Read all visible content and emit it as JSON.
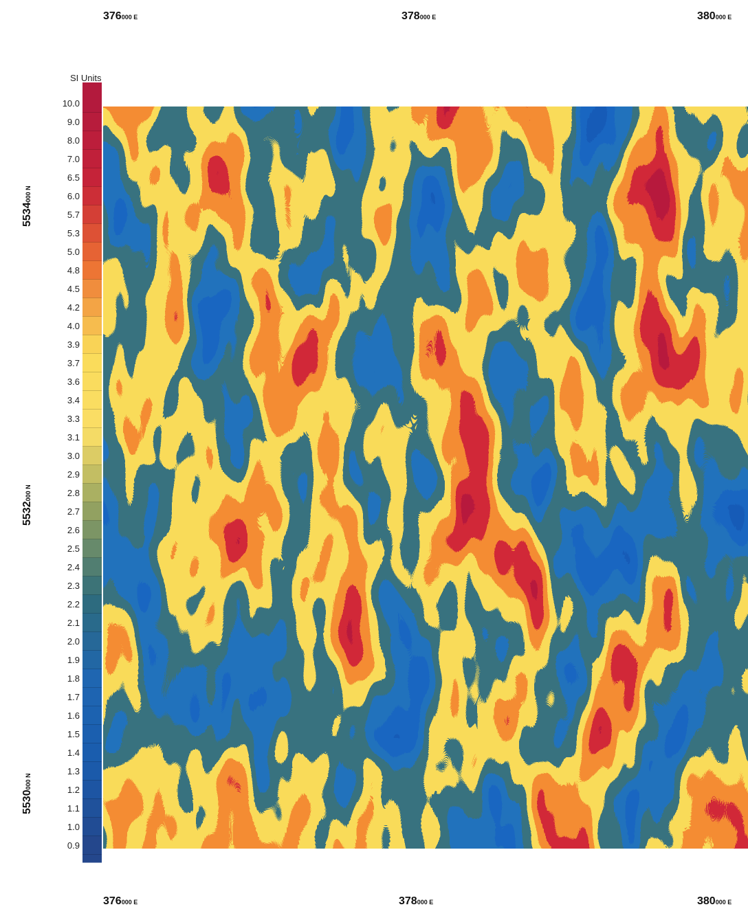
{
  "top_labels": [
    {
      "major": "376",
      "minor": "000 E"
    },
    {
      "major": "378",
      "minor": "000 E"
    },
    {
      "major": "380",
      "minor": "000 E"
    }
  ],
  "bottom_labels": [
    {
      "major": "376",
      "minor": "000 E"
    },
    {
      "major": "378",
      "minor": "000 E"
    },
    {
      "major": "380",
      "minor": "000 E"
    }
  ],
  "left_labels": [
    {
      "major": "5534",
      "minor": "000 N"
    },
    {
      "major": "5532",
      "minor": "000 N"
    },
    {
      "major": "5530",
      "minor": "000 N"
    }
  ],
  "legend": {
    "title": "SI Units",
    "labels": [
      "10.0",
      "9.0",
      "8.0",
      "7.0",
      "6.5",
      "6.0",
      "5.7",
      "5.3",
      "5.0",
      "4.8",
      "4.5",
      "4.2",
      "4.0",
      "3.9",
      "3.7",
      "3.6",
      "3.4",
      "3.3",
      "3.1",
      "3.0",
      "2.9",
      "2.8",
      "2.7",
      "2.6",
      "2.5",
      "2.4",
      "2.3",
      "2.2",
      "2.1",
      "2.0",
      "1.9",
      "1.8",
      "1.7",
      "1.6",
      "1.5",
      "1.4",
      "1.3",
      "1.2",
      "1.1",
      "1.0",
      "0.9"
    ]
  }
}
